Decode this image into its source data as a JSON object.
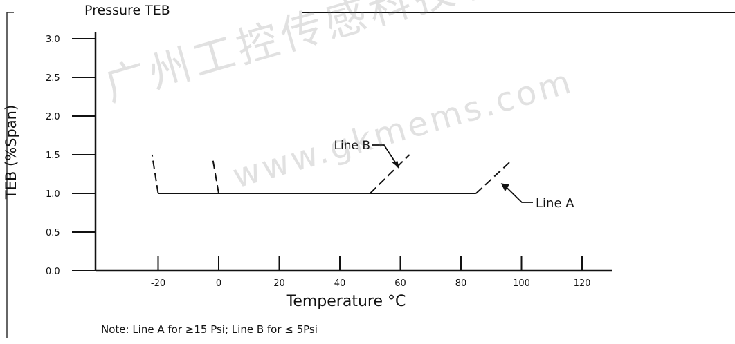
{
  "title": "Pressure TEB",
  "note": "Note: Line A for ≥15 Psi; Line B for ≤ 5Psi",
  "watermark": {
    "line1": "广州工控传感科技有限公司",
    "line2": "www.gkmems.com"
  },
  "chart_data": {
    "type": "line",
    "title": "Pressure TEB",
    "xlabel": "Temperature °C",
    "ylabel": "TEB (%Span)",
    "xlim": [
      -40,
      130
    ],
    "ylim": [
      0.0,
      3.0
    ],
    "x_ticks": [
      -20,
      0,
      20,
      40,
      60,
      80,
      100,
      120
    ],
    "x_tick_labels": [
      "-20",
      "0",
      "20",
      "40",
      "60",
      "80",
      "100",
      "120"
    ],
    "y_ticks": [
      0.0,
      0.5,
      1.0,
      1.5,
      2.0,
      2.5,
      3.0
    ],
    "y_tick_labels": [
      "0.0",
      "0.5",
      "1.0",
      "1.5",
      "2.0",
      "2.5",
      "3.0"
    ],
    "series": [
      {
        "name": "Line A",
        "solid": [
          {
            "x": -20,
            "y": 1.0
          },
          {
            "x": 85,
            "y": 1.0
          }
        ],
        "dashed_segments": [
          [
            {
              "x": -20,
              "y": 1.0
            },
            {
              "x": -22,
              "y": 1.5
            }
          ],
          [
            {
              "x": 85,
              "y": 1.0
            },
            {
              "x": 96,
              "y": 1.4
            }
          ]
        ]
      },
      {
        "name": "Line B",
        "solid": [
          {
            "x": 0,
            "y": 1.0
          },
          {
            "x": 50,
            "y": 1.0
          }
        ],
        "dashed_segments": [
          [
            {
              "x": 0,
              "y": 1.0
            },
            {
              "x": -2,
              "y": 1.45
            }
          ],
          [
            {
              "x": 50,
              "y": 1.0
            },
            {
              "x": 63,
              "y": 1.5
            }
          ]
        ]
      }
    ],
    "annotations": [
      {
        "text": "Line B",
        "x": 60,
        "y": 1.4,
        "label_side": "upper-left"
      },
      {
        "text": "Line A",
        "x": 90,
        "y": 1.15,
        "label_side": "lower-right"
      }
    ],
    "grid": false
  }
}
